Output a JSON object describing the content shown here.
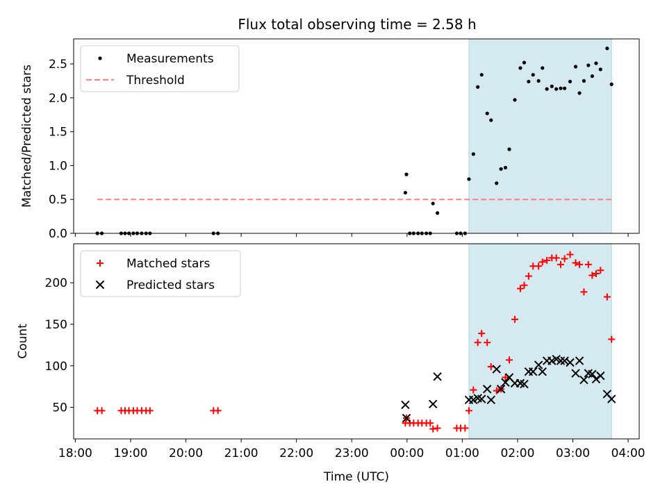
{
  "figure": {
    "title": "Flux total observing time = 2.58 h"
  },
  "chart_data": [
    {
      "type": "scatter",
      "panel": "top",
      "ylabel": "Matched/Predicted stars",
      "xlabel": "",
      "x_unit": "hours (18 = 18:00, 24 = 00:00 next day)",
      "xlim": [
        17.97,
        28.2
      ],
      "ylim": [
        0,
        2.87
      ],
      "yticks": [
        0.0,
        0.5,
        1.0,
        1.5,
        2.0,
        2.5
      ],
      "ytick_labels": [
        "0.0",
        "0.5",
        "1.0",
        "1.5",
        "2.0",
        "2.5"
      ],
      "xticks": [
        18,
        19,
        20,
        21,
        22,
        23,
        24,
        25,
        26,
        27,
        28
      ],
      "xtick_labels": [],
      "shaded_region": {
        "x_start": 25.12,
        "x_end": 27.7,
        "color": "#d4eaf0"
      },
      "legend": {
        "position": "upper left",
        "entries": [
          "Measurements",
          "Threshold"
        ]
      },
      "series": [
        {
          "name": "Measurements",
          "kind": "points",
          "color": "#000000",
          "marker": "dot",
          "x": [
            18.4,
            18.48,
            18.83,
            18.9,
            18.97,
            19.05,
            19.12,
            19.2,
            19.28,
            19.35,
            20.5,
            20.58,
            23.97,
            23.99,
            24.05,
            24.12,
            24.2,
            24.27,
            24.35,
            24.42,
            24.47,
            24.55,
            24.9,
            24.97,
            25.05,
            25.12,
            25.2,
            25.28,
            25.35,
            25.45,
            25.52,
            25.62,
            25.7,
            25.78,
            25.85,
            25.95,
            26.05,
            26.12,
            26.2,
            26.28,
            26.38,
            26.45,
            26.53,
            26.62,
            26.7,
            26.78,
            26.85,
            26.95,
            27.05,
            27.12,
            27.2,
            27.28,
            27.35,
            27.42,
            27.5,
            27.62,
            27.7
          ],
          "y": [
            0,
            0,
            0,
            0,
            0,
            0,
            0,
            0,
            0,
            0,
            0,
            0,
            0.6,
            0.87,
            0,
            0,
            0,
            0,
            0,
            0,
            0.44,
            0.3,
            0,
            0,
            0,
            0.8,
            1.17,
            2.16,
            2.34,
            1.77,
            1.67,
            0.74,
            0.95,
            0.97,
            1.24,
            1.97,
            2.44,
            2.52,
            2.24,
            2.34,
            2.25,
            2.44,
            2.13,
            2.17,
            2.13,
            2.14,
            2.14,
            2.24,
            2.46,
            2.07,
            2.25,
            2.48,
            2.32,
            2.51,
            2.42,
            2.73,
            2.2
          ]
        },
        {
          "name": "Threshold",
          "kind": "dashed-line",
          "color": "#ff7f7f",
          "x": [
            18.4,
            27.7
          ],
          "y": [
            0.5,
            0.5
          ]
        }
      ]
    },
    {
      "type": "scatter",
      "panel": "bottom",
      "ylabel": "Count",
      "xlabel": "Time (UTC)",
      "x_unit": "hours (18 = 18:00, 24 = 00:00 next day)",
      "xlim": [
        17.97,
        28.2
      ],
      "ylim": [
        12,
        247
      ],
      "yticks": [
        50,
        100,
        150,
        200
      ],
      "ytick_labels": [
        "50",
        "100",
        "150",
        "200"
      ],
      "xticks": [
        18,
        19,
        20,
        21,
        22,
        23,
        24,
        25,
        26,
        27,
        28
      ],
      "xtick_labels": [
        "18:00",
        "19:00",
        "20:00",
        "21:00",
        "22:00",
        "23:00",
        "00:00",
        "01:00",
        "02:00",
        "03:00",
        "04:00"
      ],
      "shaded_region": {
        "x_start": 25.12,
        "x_end": 27.7,
        "color": "#d4eaf0"
      },
      "legend": {
        "position": "upper left",
        "entries": [
          "Matched stars",
          "Predicted stars"
        ]
      },
      "series": [
        {
          "name": "Matched stars",
          "kind": "points",
          "color": "#ff0000",
          "marker": "plus",
          "x": [
            18.4,
            18.48,
            18.83,
            18.9,
            18.97,
            19.05,
            19.12,
            19.2,
            19.28,
            19.35,
            20.5,
            20.58,
            23.97,
            23.99,
            24.05,
            24.12,
            24.2,
            24.27,
            24.35,
            24.42,
            24.47,
            24.55,
            24.9,
            24.97,
            25.05,
            25.12,
            25.2,
            25.28,
            25.35,
            25.45,
            25.52,
            25.62,
            25.7,
            25.78,
            25.85,
            25.95,
            26.05,
            26.12,
            26.2,
            26.28,
            26.38,
            26.45,
            26.53,
            26.62,
            26.7,
            26.78,
            26.85,
            26.95,
            27.05,
            27.12,
            27.2,
            27.28,
            27.35,
            27.42,
            27.5,
            27.62,
            27.7
          ],
          "y": [
            46,
            46,
            46,
            46,
            46,
            46,
            46,
            46,
            46,
            46,
            46,
            46,
            31,
            37,
            31,
            31,
            31,
            31,
            31,
            31,
            24,
            25,
            25,
            25,
            25,
            46,
            71,
            128,
            139,
            128,
            99,
            70,
            72,
            86,
            107,
            156,
            193,
            197,
            208,
            220,
            220,
            225,
            227,
            230,
            230,
            222,
            229,
            234,
            224,
            222,
            189,
            222,
            209,
            211,
            215,
            183,
            132
          ]
        },
        {
          "name": "Predicted stars",
          "kind": "points",
          "color": "#000000",
          "marker": "x",
          "x": [
            23.97,
            23.99,
            24.47,
            24.55,
            25.12,
            25.2,
            25.28,
            25.35,
            25.45,
            25.52,
            25.62,
            25.7,
            25.78,
            25.85,
            25.95,
            26.05,
            26.12,
            26.2,
            26.28,
            26.38,
            26.45,
            26.53,
            26.62,
            26.7,
            26.78,
            26.85,
            26.95,
            27.05,
            27.12,
            27.2,
            27.28,
            27.35,
            27.42,
            27.5,
            27.62,
            27.7
          ],
          "y": [
            53,
            37,
            54,
            87,
            59,
            59,
            61,
            60,
            72,
            59,
            96,
            72,
            80,
            86,
            79,
            79,
            78,
            93,
            93,
            101,
            93,
            106,
            106,
            108,
            106,
            106,
            104,
            91,
            106,
            83,
            91,
            90,
            84,
            88,
            66,
            60
          ]
        }
      ]
    }
  ]
}
